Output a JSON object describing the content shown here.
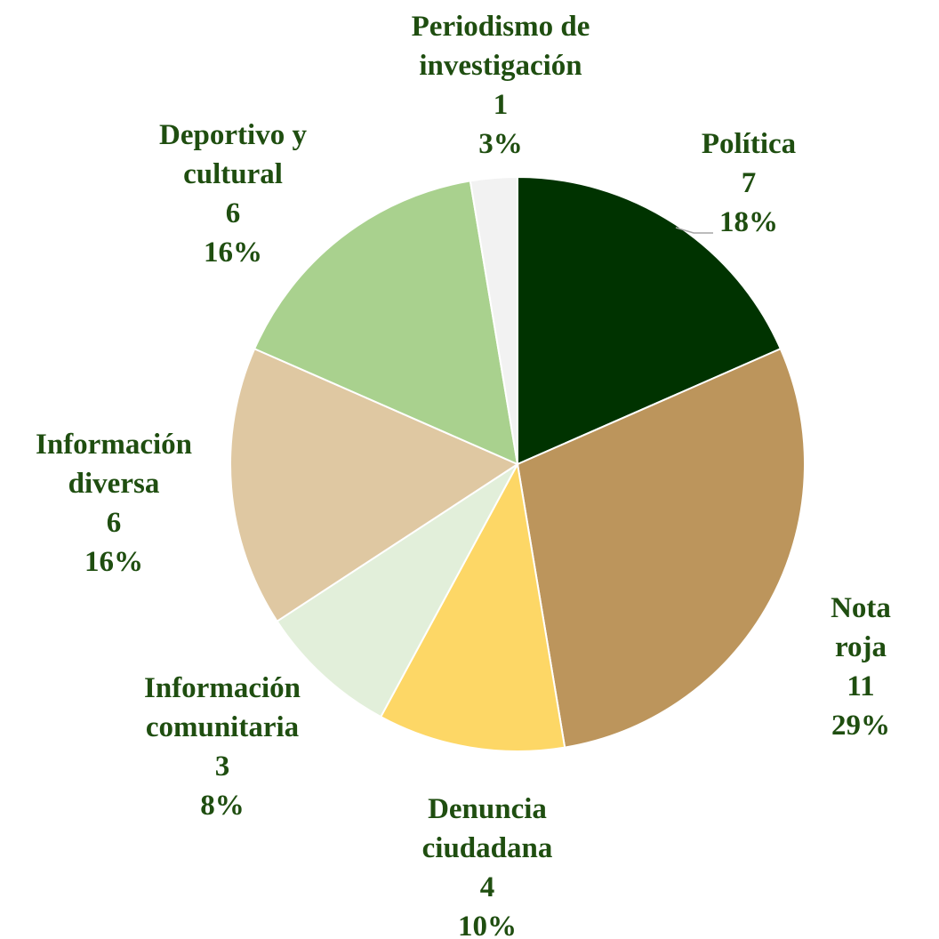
{
  "chart_data": {
    "type": "pie",
    "categories": [
      "Política",
      "Nota roja",
      "Denuncia\nciudadana",
      "Información\ncomunitaria",
      "Información\ndiversa",
      "Deportivo y\ncultural",
      "Periodismo de\ninvestigación"
    ],
    "values": [
      7,
      11,
      4,
      3,
      6,
      6,
      1
    ],
    "percentages": [
      18,
      29,
      10,
      8,
      16,
      16,
      3
    ],
    "percentage_labels": [
      "18%",
      "29%",
      "10%",
      "8%",
      "16%",
      "16%",
      "3%"
    ],
    "colors": [
      "#003300",
      "#bc955c",
      "#fdd766",
      "#e2efda",
      "#dfc8a2",
      "#a9d18e",
      "#f2f2f2"
    ]
  }
}
